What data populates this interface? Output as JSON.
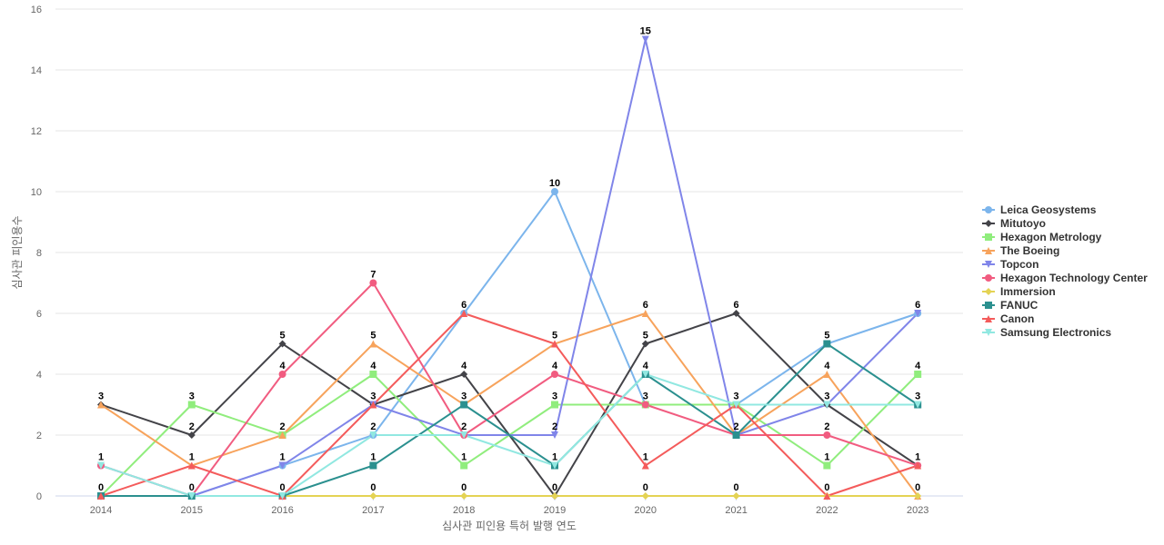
{
  "chart_data": {
    "type": "line",
    "title": "",
    "xlabel": "심사관 피인용 특허 발행 연도",
    "ylabel": "심사관 피인용수",
    "categories": [
      "2014",
      "2015",
      "2016",
      "2017",
      "2018",
      "2019",
      "2020",
      "2021",
      "2022",
      "2023"
    ],
    "ylim": [
      0,
      16
    ],
    "yticks": [
      0,
      2,
      4,
      6,
      8,
      10,
      12,
      14,
      16
    ],
    "grid": true,
    "legend_position": "right",
    "series": [
      {
        "name": "Leica Geosystems",
        "color": "#7cb5ec",
        "marker": "circle",
        "values": [
          1,
          0,
          1,
          2,
          6,
          10,
          3,
          3,
          5,
          6
        ]
      },
      {
        "name": "Mitutoyo",
        "color": "#434348",
        "marker": "diamond",
        "values": [
          3,
          2,
          5,
          3,
          4,
          0,
          5,
          6,
          3,
          1
        ]
      },
      {
        "name": "Hexagon Metrology",
        "color": "#90ed7d",
        "marker": "square",
        "values": [
          0,
          3,
          2,
          4,
          1,
          3,
          3,
          3,
          1,
          4
        ]
      },
      {
        "name": "The Boeing",
        "color": "#f7a35c",
        "marker": "triangle",
        "values": [
          3,
          1,
          2,
          5,
          3,
          5,
          6,
          2,
          4,
          0
        ]
      },
      {
        "name": "Topcon",
        "color": "#8085e9",
        "marker": "triangle-down",
        "values": [
          0,
          0,
          1,
          3,
          2,
          2,
          15,
          2,
          3,
          6
        ]
      },
      {
        "name": "Hexagon Technology Center",
        "color": "#f15c80",
        "marker": "circle",
        "values": [
          1,
          0,
          4,
          7,
          2,
          4,
          3,
          2,
          2,
          1
        ]
      },
      {
        "name": "Immersion",
        "color": "#e4d354",
        "marker": "diamond",
        "values": [
          0,
          0,
          0,
          0,
          0,
          0,
          0,
          0,
          0,
          0
        ]
      },
      {
        "name": "FANUC",
        "color": "#2b908f",
        "marker": "square",
        "values": [
          0,
          0,
          0,
          1,
          3,
          1,
          4,
          2,
          5,
          3
        ]
      },
      {
        "name": "Canon",
        "color": "#f45b5b",
        "marker": "triangle",
        "values": [
          0,
          1,
          0,
          3,
          6,
          5,
          1,
          3,
          0,
          1
        ]
      },
      {
        "name": "Samsung Electronics",
        "color": "#91e8e1",
        "marker": "triangle-down",
        "values": [
          1,
          0,
          0,
          2,
          2,
          1,
          4,
          3,
          3,
          3
        ]
      }
    ],
    "data_labels": [
      {
        "x": "2014",
        "text": "3",
        "value": 3
      },
      {
        "x": "2014",
        "text": "1",
        "value": 1
      },
      {
        "x": "2014",
        "text": "0",
        "value": 0
      },
      {
        "x": "2015",
        "text": "3",
        "value": 3
      },
      {
        "x": "2015",
        "text": "2",
        "value": 2
      },
      {
        "x": "2015",
        "text": "1",
        "value": 1
      },
      {
        "x": "2015",
        "text": "0",
        "value": 0
      },
      {
        "x": "2016",
        "text": "5",
        "value": 5
      },
      {
        "x": "2016",
        "text": "4",
        "value": 4
      },
      {
        "x": "2016",
        "text": "2",
        "value": 2
      },
      {
        "x": "2016",
        "text": "1",
        "value": 1
      },
      {
        "x": "2016",
        "text": "0",
        "value": 0
      },
      {
        "x": "2017",
        "text": "7",
        "value": 7
      },
      {
        "x": "2017",
        "text": "5",
        "value": 5
      },
      {
        "x": "2017",
        "text": "4",
        "value": 4
      },
      {
        "x": "2017",
        "text": "3",
        "value": 3
      },
      {
        "x": "2017",
        "text": "2",
        "value": 2
      },
      {
        "x": "2017",
        "text": "1",
        "value": 1
      },
      {
        "x": "2017",
        "text": "0",
        "value": 0
      },
      {
        "x": "2018",
        "text": "6",
        "value": 6
      },
      {
        "x": "2018",
        "text": "4",
        "value": 4
      },
      {
        "x": "2018",
        "text": "3",
        "value": 3
      },
      {
        "x": "2018",
        "text": "2",
        "value": 2
      },
      {
        "x": "2018",
        "text": "1",
        "value": 1
      },
      {
        "x": "2018",
        "text": "0",
        "value": 0
      },
      {
        "x": "2019",
        "text": "10",
        "value": 10
      },
      {
        "x": "2019",
        "text": "5",
        "value": 5
      },
      {
        "x": "2019",
        "text": "4",
        "value": 4
      },
      {
        "x": "2019",
        "text": "3",
        "value": 3
      },
      {
        "x": "2019",
        "text": "2",
        "value": 2
      },
      {
        "x": "2019",
        "text": "1",
        "value": 1
      },
      {
        "x": "2019",
        "text": "0",
        "value": 0
      },
      {
        "x": "2020",
        "text": "15",
        "value": 15
      },
      {
        "x": "2020",
        "text": "6",
        "value": 6
      },
      {
        "x": "2020",
        "text": "5",
        "value": 5
      },
      {
        "x": "2020",
        "text": "4",
        "value": 4
      },
      {
        "x": "2020",
        "text": "3",
        "value": 3
      },
      {
        "x": "2020",
        "text": "1",
        "value": 1
      },
      {
        "x": "2020",
        "text": "0",
        "value": 0
      },
      {
        "x": "2021",
        "text": "6",
        "value": 6
      },
      {
        "x": "2021",
        "text": "3",
        "value": 3
      },
      {
        "x": "2021",
        "text": "2",
        "value": 2
      },
      {
        "x": "2021",
        "text": "0",
        "value": 0
      },
      {
        "x": "2022",
        "text": "5",
        "value": 5
      },
      {
        "x": "2022",
        "text": "4",
        "value": 4
      },
      {
        "x": "2022",
        "text": "3",
        "value": 3
      },
      {
        "x": "2022",
        "text": "2",
        "value": 2
      },
      {
        "x": "2022",
        "text": "1",
        "value": 1
      },
      {
        "x": "2022",
        "text": "0",
        "value": 0
      },
      {
        "x": "2023",
        "text": "6",
        "value": 6
      },
      {
        "x": "2023",
        "text": "4",
        "value": 4
      },
      {
        "x": "2023",
        "text": "3",
        "value": 3
      },
      {
        "x": "2023",
        "text": "1",
        "value": 1
      },
      {
        "x": "2023",
        "text": "0",
        "value": 0
      }
    ]
  }
}
